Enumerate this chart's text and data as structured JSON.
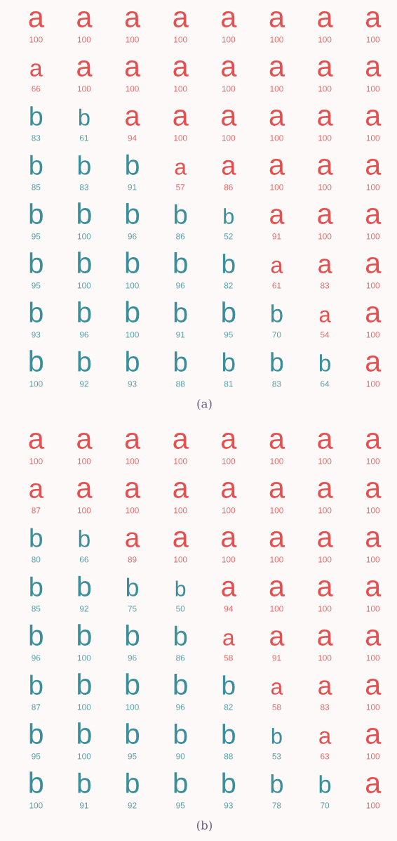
{
  "chart_data": [
    {
      "type": "other",
      "data_labels": true,
      "categories": [
        null,
        null,
        null,
        null,
        null,
        null,
        null,
        null,
        null,
        null,
        null,
        null,
        null,
        null,
        null,
        null,
        null,
        null,
        null,
        null,
        null,
        null,
        null,
        null,
        null,
        null,
        null,
        null,
        null,
        null,
        null,
        null,
        null,
        null,
        null,
        null,
        null,
        null,
        null,
        null,
        null,
        null,
        null,
        null,
        null,
        null,
        null,
        null,
        null,
        null,
        null,
        null,
        null,
        null,
        null,
        null,
        null,
        null,
        null,
        null,
        null,
        null,
        null,
        null
      ],
      "y_categories": [
        null,
        null,
        null,
        null,
        null,
        null,
        null,
        null
      ],
      "values": [
        100,
        100,
        100,
        100,
        100,
        100,
        100,
        100,
        66,
        100,
        100,
        100,
        100,
        100,
        100,
        100,
        83,
        61,
        94,
        100,
        100,
        100,
        100,
        100,
        85,
        83,
        91,
        57,
        86,
        100,
        100,
        100,
        95,
        100,
        96,
        86,
        52,
        91,
        100,
        100,
        95,
        100,
        100,
        96,
        82,
        61,
        83,
        100,
        93,
        96,
        100,
        91,
        95,
        70,
        54,
        100,
        100,
        92,
        93,
        88,
        81,
        83,
        64,
        100
      ],
      "cell_labels": [
        [
          "a",
          "a",
          "a",
          "a",
          "a",
          "a",
          "a",
          "a"
        ],
        [
          "a",
          "a",
          "a",
          "a",
          "a",
          "a",
          "a",
          "a"
        ],
        [
          "b",
          "b",
          "a",
          "a",
          "a",
          "a",
          "a",
          "a"
        ],
        [
          "b",
          "b",
          "b",
          "a",
          "a",
          "a",
          "a",
          "a"
        ],
        [
          "b",
          "b",
          "b",
          "b",
          "b",
          "a",
          "a",
          "a"
        ],
        [
          "b",
          "b",
          "b",
          "b",
          "b",
          "a",
          "a",
          "a"
        ],
        [
          "b",
          "b",
          "b",
          "b",
          "b",
          "b",
          "a",
          "a"
        ],
        [
          "b",
          "b",
          "b",
          "b",
          "b",
          "b",
          "b",
          "a"
        ]
      ],
      "colors": [
        "#e4504f",
        "#e4504f",
        "#e4504f",
        "#e4504f",
        "#e4504f",
        "#e4504f",
        "#e4504f",
        "#e4504f",
        "#e4504f",
        "#e4504f",
        "#e4504f",
        "#e4504f",
        "#e4504f",
        "#e4504f",
        "#e4504f",
        "#e4504f",
        "#3a8f9a",
        "#3a8f9a",
        "#e4504f",
        "#e4504f",
        "#e4504f",
        "#e4504f",
        "#e4504f",
        "#e4504f",
        "#3a8f9a",
        "#3a8f9a",
        "#3a8f9a",
        "#e4504f",
        "#e4504f",
        "#e4504f",
        "#e4504f",
        "#e4504f",
        "#3a8f9a",
        "#3a8f9a",
        "#3a8f9a",
        "#3a8f9a",
        "#3a8f9a",
        "#e4504f",
        "#e4504f",
        "#e4504f",
        "#3a8f9a",
        "#3a8f9a",
        "#3a8f9a",
        "#3a8f9a",
        "#3a8f9a",
        "#e4504f",
        "#e4504f",
        "#e4504f",
        "#3a8f9a",
        "#3a8f9a",
        "#3a8f9a",
        "#3a8f9a",
        "#3a8f9a",
        "#3a8f9a",
        "#e4504f",
        "#e4504f",
        "#3a8f9a",
        "#3a8f9a",
        "#3a8f9a",
        "#3a8f9a",
        "#3a8f9a",
        "#3a8f9a",
        "#3a8f9a",
        "#e4504f"
      ],
      "annotations": [
        "(a)"
      ]
    },
    {
      "type": "other",
      "data_labels": true,
      "categories": [
        null,
        null,
        null,
        null,
        null,
        null,
        null,
        null,
        null,
        null,
        null,
        null,
        null,
        null,
        null,
        null,
        null,
        null,
        null,
        null,
        null,
        null,
        null,
        null,
        null,
        null,
        null,
        null,
        null,
        null,
        null,
        null,
        null,
        null,
        null,
        null,
        null,
        null,
        null,
        null,
        null,
        null,
        null,
        null,
        null,
        null,
        null,
        null,
        null,
        null,
        null,
        null,
        null,
        null,
        null,
        null,
        null,
        null,
        null,
        null,
        null,
        null,
        null,
        null
      ],
      "y_categories": [
        null,
        null,
        null,
        null,
        null,
        null,
        null,
        null
      ],
      "values": [
        100,
        100,
        100,
        100,
        100,
        100,
        100,
        100,
        87,
        100,
        100,
        100,
        100,
        100,
        100,
        100,
        80,
        66,
        89,
        100,
        100,
        100,
        100,
        100,
        85,
        92,
        75,
        50,
        94,
        100,
        100,
        100,
        96,
        100,
        96,
        86,
        58,
        91,
        100,
        100,
        87,
        100,
        100,
        96,
        82,
        58,
        83,
        100,
        95,
        100,
        95,
        90,
        88,
        53,
        63,
        100,
        100,
        91,
        92,
        95,
        93,
        78,
        70,
        100
      ],
      "cell_labels": [
        [
          "a",
          "a",
          "a",
          "a",
          "a",
          "a",
          "a",
          "a"
        ],
        [
          "a",
          "a",
          "a",
          "a",
          "a",
          "a",
          "a",
          "a"
        ],
        [
          "b",
          "b",
          "a",
          "a",
          "a",
          "a",
          "a",
          "a"
        ],
        [
          "b",
          "b",
          "b",
          "b",
          "a",
          "a",
          "a",
          "a"
        ],
        [
          "b",
          "b",
          "b",
          "b",
          "a",
          "a",
          "a",
          "a"
        ],
        [
          "b",
          "b",
          "b",
          "b",
          "b",
          "a",
          "a",
          "a"
        ],
        [
          "b",
          "b",
          "b",
          "b",
          "b",
          "b",
          "a",
          "a"
        ],
        [
          "b",
          "b",
          "b",
          "b",
          "b",
          "b",
          "b",
          "a"
        ]
      ],
      "colors": [
        "#e4504f",
        "#e4504f",
        "#e4504f",
        "#e4504f",
        "#e4504f",
        "#e4504f",
        "#e4504f",
        "#e4504f",
        "#e4504f",
        "#e4504f",
        "#e4504f",
        "#e4504f",
        "#e4504f",
        "#e4504f",
        "#e4504f",
        "#e4504f",
        "#3a8f9a",
        "#3a8f9a",
        "#e4504f",
        "#e4504f",
        "#e4504f",
        "#e4504f",
        "#e4504f",
        "#e4504f",
        "#3a8f9a",
        "#3a8f9a",
        "#3a8f9a",
        "#3a8f9a",
        "#e4504f",
        "#e4504f",
        "#e4504f",
        "#e4504f",
        "#3a8f9a",
        "#3a8f9a",
        "#3a8f9a",
        "#3a8f9a",
        "#e4504f",
        "#e4504f",
        "#e4504f",
        "#e4504f",
        "#3a8f9a",
        "#3a8f9a",
        "#3a8f9a",
        "#3a8f9a",
        "#3a8f9a",
        "#e4504f",
        "#e4504f",
        "#e4504f",
        "#3a8f9a",
        "#3a8f9a",
        "#3a8f9a",
        "#3a8f9a",
        "#3a8f9a",
        "#3a8f9a",
        "#e4504f",
        "#e4504f",
        "#3a8f9a",
        "#3a8f9a",
        "#3a8f9a",
        "#3a8f9a",
        "#3a8f9a",
        "#3a8f9a",
        "#3a8f9a",
        "#e4504f"
      ],
      "annotations": [
        "(b)"
      ]
    }
  ]
}
